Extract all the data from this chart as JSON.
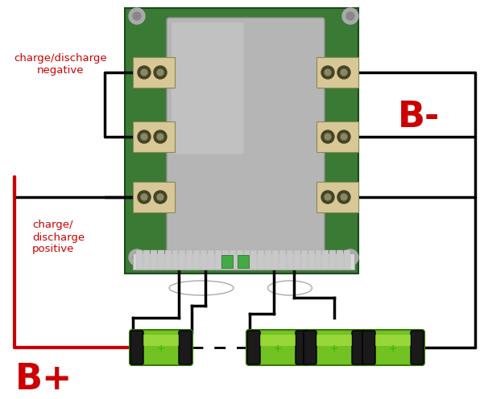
{
  "bg_color": "#ffffff",
  "red_color": "#cc0000",
  "black_color": "#000000",
  "board_green": "#3a7a35",
  "metal_color_light": "#c0c0c0",
  "metal_color_dark": "#a0a0a0",
  "connector_bg": "#d8c898",
  "connector_hole": "#444422",
  "battery_green": "#72c224",
  "battery_green_light": "#a8e040",
  "battery_cap": "#1a1a1a",
  "label_bplus": "B+",
  "label_bminus": "B-",
  "label_charge_neg": "charge/discharge\nnegative",
  "label_charge_pos": "charge/\ndischarge\npositive"
}
